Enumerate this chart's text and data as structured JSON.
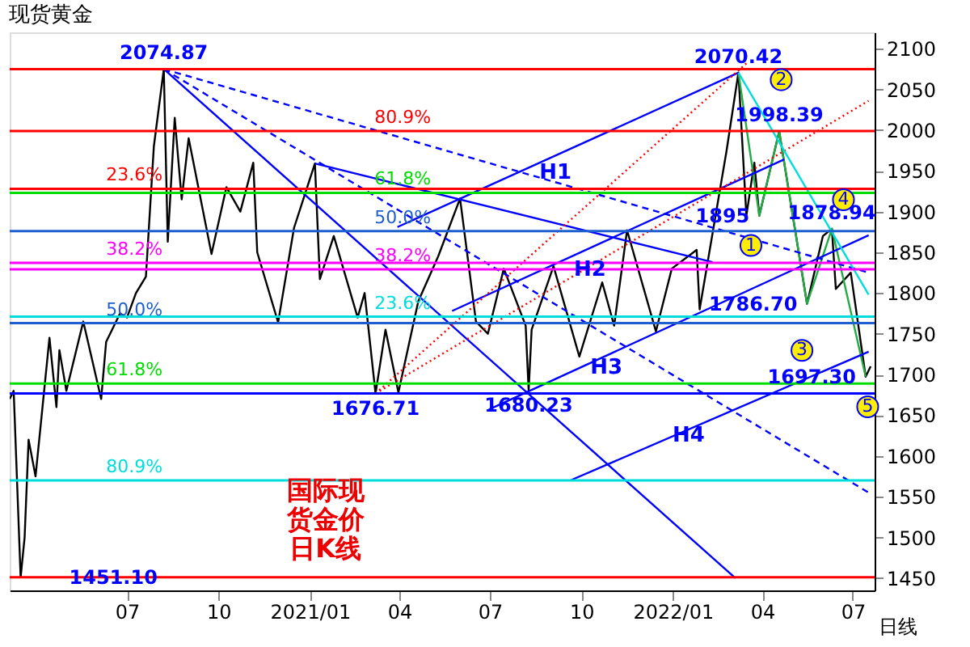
{
  "chart_data": {
    "type": "line",
    "title": "现货黄金",
    "xlim": [
      "2020-03-05",
      "2022-07-23"
    ],
    "ylim": [
      1435,
      2120
    ],
    "xticks": [
      {
        "value": "2020-07-01",
        "label": "07"
      },
      {
        "value": "2020-10-01",
        "label": "10"
      },
      {
        "value": "2021-01-01",
        "label": "2021/01"
      },
      {
        "value": "2021-04-01",
        "label": "04"
      },
      {
        "value": "2021-07-01",
        "label": "07"
      },
      {
        "value": "2021-10-01",
        "label": "10"
      },
      {
        "value": "2022-01-01",
        "label": "2022/01"
      },
      {
        "value": "2022-04-01",
        "label": "04"
      },
      {
        "value": "2022-07-01",
        "label": "07"
      }
    ],
    "yticks": [
      1450,
      1500,
      1550,
      1600,
      1650,
      1700,
      1750,
      1800,
      1850,
      1900,
      1950,
      2000,
      2050,
      2100
    ],
    "grid": false,
    "series": [
      {
        "color": "#000000",
        "x": [
          "2020-03-05",
          "2020-03-09",
          "2020-03-16",
          "2020-03-20",
          "2020-03-24",
          "2020-03-31",
          "2020-04-14",
          "2020-04-21",
          "2020-04-24",
          "2020-05-01",
          "2020-05-18",
          "2020-06-05",
          "2020-06-10",
          "2020-06-24",
          "2020-07-01",
          "2020-07-10",
          "2020-07-20",
          "2020-07-28",
          "2020-08-07",
          "2020-08-11",
          "2020-08-18",
          "2020-08-25",
          "2020-09-01",
          "2020-09-24",
          "2020-10-09",
          "2020-10-23",
          "2020-11-05",
          "2020-11-09",
          "2020-11-30",
          "2020-12-16",
          "2021-01-06",
          "2021-01-11",
          "2021-01-25",
          "2021-02-18",
          "2021-02-25",
          "2021-03-08",
          "2021-03-18",
          "2021-03-31",
          "2021-04-20",
          "2021-05-10",
          "2021-06-01",
          "2021-06-17",
          "2021-06-29",
          "2021-07-15",
          "2021-08-06",
          "2021-08-09",
          "2021-08-12",
          "2021-09-03",
          "2021-09-29",
          "2021-10-22",
          "2021-11-03",
          "2021-11-16",
          "2021-12-15",
          "2021-12-31",
          "2022-01-25",
          "2022-01-28",
          "2022-02-24",
          "2022-03-08",
          "2022-03-16",
          "2022-03-24",
          "2022-03-29",
          "2022-04-18",
          "2022-05-16",
          "2022-06-01",
          "2022-06-10",
          "2022-06-14",
          "2022-06-29",
          "2022-07-14",
          "2022-07-19"
        ],
        "values": [
          1670,
          1680,
          1451.1,
          1500,
          1620,
          1575,
          1745,
          1660,
          1730,
          1680,
          1765,
          1670,
          1740,
          1775,
          1770,
          1800,
          1820,
          1980,
          2074.87,
          1863,
          2015,
          1915,
          1990,
          1848,
          1930,
          1900,
          1960,
          1850,
          1764,
          1880,
          1959,
          1817,
          1870,
          1770,
          1800,
          1676.71,
          1755,
          1678,
          1790,
          1845,
          1916,
          1765,
          1750,
          1830,
          1760,
          1680.23,
          1755,
          1833,
          1722,
          1813,
          1760,
          1877,
          1753,
          1830,
          1853,
          1780,
          1974,
          2070.42,
          1895,
          1960,
          1895,
          1998.39,
          1786.7,
          1870,
          1878.94,
          1805,
          1825,
          1697.3,
          1710
        ]
      },
      {
        "color": "#22aa44",
        "x": [
          "2022-03-08",
          "2022-03-29",
          "2022-04-18",
          "2022-05-16",
          "2022-06-10",
          "2022-07-14"
        ],
        "values": [
          2070.42,
          1895,
          1998.39,
          1786.7,
          1878.94,
          1697.3
        ]
      },
      {
        "color": "#0000ff",
        "x": [
          "2020-08-07",
          "2022-03-05"
        ],
        "values": [
          2074.87,
          1450
        ]
      },
      {
        "color": "#0000ff",
        "x": [
          "2021-01-06",
          "2022-02-10"
        ],
        "values": [
          1959,
          1838
        ]
      },
      {
        "color": "#0000ff",
        "line_style": "dashed",
        "x": [
          "2020-08-07",
          "2022-07-17"
        ],
        "values": [
          2074.87,
          1825
        ]
      },
      {
        "color": "#0000ff",
        "line_style": "dashed",
        "x": [
          "2020-08-07",
          "2022-07-17"
        ],
        "values": [
          2074.87,
          1555
        ]
      },
      {
        "color": "#0000ff",
        "x": [
          "2021-03-30",
          "2022-03-08"
        ],
        "values": [
          1881,
          2070.42
        ]
      },
      {
        "color": "#0000ff",
        "x": [
          "2021-05-24",
          "2022-04-23"
        ],
        "values": [
          1778,
          1964
        ]
      },
      {
        "color": "#0000ff",
        "x": [
          "2021-06-30",
          "2022-07-17"
        ],
        "values": [
          1657,
          1871
        ]
      },
      {
        "color": "#0000ff",
        "x": [
          "2021-09-20",
          "2022-07-17"
        ],
        "values": [
          1570,
          1728
        ]
      },
      {
        "color": "#ff0000",
        "line_style": "dotted",
        "x": [
          "2021-03-08",
          "2022-03-18"
        ],
        "values": [
          1676.71,
          2084
        ]
      },
      {
        "color": "#ff0000",
        "line_style": "dotted",
        "x": [
          "2021-03-08",
          "2022-07-17"
        ],
        "values": [
          1676.71,
          2036
        ]
      },
      {
        "color": "#00dddd",
        "x": [
          "2022-03-08",
          "2022-07-17"
        ],
        "values": [
          2070.42,
          1798
        ]
      }
    ],
    "ref_lines": [
      {
        "axis": "y",
        "value": 2074.87,
        "color": "#ff0000"
      },
      {
        "axis": "y",
        "value": 1451.1,
        "color": "#ff0000"
      },
      {
        "axis": "y",
        "value": 1676.71,
        "color": "#0000ff"
      },
      {
        "axis": "y",
        "value": 1928,
        "color": "#ff0000"
      },
      {
        "axis": "y",
        "value": 1837,
        "color": "#ff00ff"
      },
      {
        "axis": "y",
        "value": 1763,
        "color": "#1e5fd0"
      },
      {
        "axis": "y",
        "value": 1689,
        "color": "#00dd00"
      },
      {
        "axis": "y",
        "value": 1570,
        "color": "#00dddd"
      },
      {
        "axis": "y",
        "value": 1999,
        "color": "#ff0000"
      },
      {
        "axis": "y",
        "value": 1923,
        "color": "#00dd00"
      },
      {
        "axis": "y",
        "value": 1876,
        "color": "#1e5fd0"
      },
      {
        "axis": "y",
        "value": 1829,
        "color": "#ff00ff"
      },
      {
        "axis": "y",
        "value": 1771,
        "color": "#00dddd"
      }
    ],
    "annotations": [
      {
        "text": "23.6%",
        "x": "2020-06-10",
        "y": 1928
      },
      {
        "text": "38.2%",
        "x": "2020-06-10",
        "y": 1837
      },
      {
        "text": "50.0%",
        "x": "2020-06-10",
        "y": 1763
      },
      {
        "text": "61.8%",
        "x": "2020-06-10",
        "y": 1689
      },
      {
        "text": "80.9%",
        "x": "2020-06-10",
        "y": 1570
      },
      {
        "text": "80.9%",
        "x": "2021-03-07",
        "y": 1999
      },
      {
        "text": "61.8%",
        "x": "2021-03-07",
        "y": 1923
      },
      {
        "text": "50.0%",
        "x": "2021-03-07",
        "y": 1876
      },
      {
        "text": "38.2%",
        "x": "2021-03-07",
        "y": 1829
      },
      {
        "text": "23.6%",
        "x": "2021-03-07",
        "y": 1771
      },
      {
        "text": "2074.87",
        "x": "2020-08-07",
        "y": 2074.87
      },
      {
        "text": "2070.42",
        "x": "2022-03-08",
        "y": 2070.42
      },
      {
        "text": "1998.39",
        "x": "2022-04-18",
        "y": 1998.39
      },
      {
        "text": "1895",
        "x": "2022-03-29",
        "y": 1895
      },
      {
        "text": "1786.70",
        "x": "2022-05-16",
        "y": 1786.7
      },
      {
        "text": "1878.94",
        "x": "2022-06-10",
        "y": 1878.94
      },
      {
        "text": "1697.30",
        "x": "2022-07-14",
        "y": 1697.3
      },
      {
        "text": "1676.71",
        "x": "2021-03-08",
        "y": 1676.71
      },
      {
        "text": "1680.23",
        "x": "2021-08-09",
        "y": 1680.23
      },
      {
        "text": "1451.10",
        "x": "2020-03-16",
        "y": 1451.1
      },
      "H1",
      "H2",
      "H3",
      "H4",
      "1",
      "2",
      "3",
      "4",
      "5",
      "国际现货金价日K线",
      "日线"
    ]
  }
}
